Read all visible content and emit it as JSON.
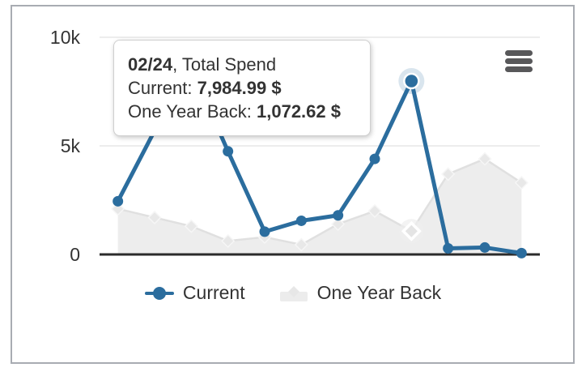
{
  "panel": {
    "background": "#ffffff",
    "border_color": "#a8acb2"
  },
  "tooltip": {
    "date": "02/24",
    "title_rest": ", Total Spend",
    "current_label": "Current: ",
    "current_value": "7,984.99 $",
    "back_label": "One Year Back: ",
    "back_value": "1,072.62 $"
  },
  "legend": {
    "items": [
      {
        "label": "Current",
        "color": "#2b6d9e",
        "marker": "circle-on-line"
      },
      {
        "label": "One Year Back",
        "color": "#ececec",
        "marker": "diamond-on-area"
      }
    ]
  },
  "chart_data": {
    "type": "line",
    "title": "",
    "xlabel": "",
    "ylabel": "",
    "ylim": [
      0,
      10000
    ],
    "yticks": [
      {
        "value": 0,
        "label": "0"
      },
      {
        "value": 5000,
        "label": "5k"
      },
      {
        "value": 10000,
        "label": "10k"
      }
    ],
    "x_count": 12,
    "x_labels_visible": false,
    "grid": "horizontal",
    "legend_position": "bottom",
    "highlight_index": 8,
    "highlight_x_label": "02/24",
    "series": [
      {
        "name": "Current",
        "type": "line",
        "color": "#2b6d9e",
        "values": [
          2450,
          5700,
          8600,
          4750,
          1050,
          1550,
          1800,
          4400,
          7984.99,
          280,
          320,
          60
        ]
      },
      {
        "name": "One Year Back",
        "type": "area",
        "color": "#ededed",
        "values": [
          2100,
          1700,
          1300,
          620,
          800,
          450,
          1400,
          2000,
          1072.62,
          3700,
          4400,
          3300
        ]
      }
    ]
  }
}
